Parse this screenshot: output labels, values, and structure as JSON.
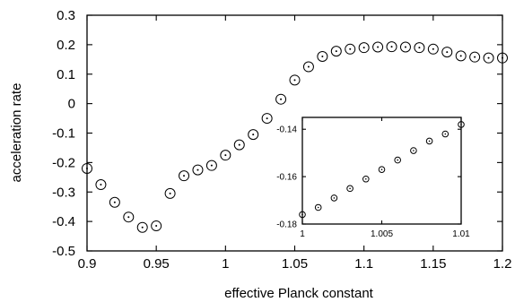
{
  "chart_data": [
    {
      "type": "scatter",
      "xlabel": "effective Planck constant",
      "ylabel": "acceleration rate",
      "xlim": [
        0.9,
        1.2
      ],
      "ylim": [
        -0.5,
        0.3
      ],
      "xticks": [
        "0.9",
        "0.95",
        "1",
        "1.05",
        "1.1",
        "1.15",
        "1.2"
      ],
      "yticks": [
        "-0.5",
        "-0.4",
        "-0.3",
        "-0.2",
        "-0.1",
        "0",
        "0.1",
        "0.2",
        "0.3"
      ],
      "xtick_values": [
        0.9,
        0.95,
        1.0,
        1.05,
        1.1,
        1.15,
        1.2
      ],
      "ytick_values": [
        -0.5,
        -0.4,
        -0.3,
        -0.2,
        -0.1,
        0,
        0.1,
        0.2,
        0.3
      ],
      "marker": "circle-with-dot",
      "points": [
        {
          "x": 0.9,
          "y": -0.22
        },
        {
          "x": 0.91,
          "y": -0.275
        },
        {
          "x": 0.92,
          "y": -0.335
        },
        {
          "x": 0.93,
          "y": -0.385
        },
        {
          "x": 0.94,
          "y": -0.42
        },
        {
          "x": 0.95,
          "y": -0.415
        },
        {
          "x": 0.96,
          "y": -0.305
        },
        {
          "x": 0.97,
          "y": -0.245
        },
        {
          "x": 0.98,
          "y": -0.225
        },
        {
          "x": 0.99,
          "y": -0.21
        },
        {
          "x": 1.0,
          "y": -0.175
        },
        {
          "x": 1.01,
          "y": -0.14
        },
        {
          "x": 1.02,
          "y": -0.105
        },
        {
          "x": 1.03,
          "y": -0.05
        },
        {
          "x": 1.04,
          "y": 0.015
        },
        {
          "x": 1.05,
          "y": 0.08
        },
        {
          "x": 1.06,
          "y": 0.125
        },
        {
          "x": 1.07,
          "y": 0.16
        },
        {
          "x": 1.08,
          "y": 0.178
        },
        {
          "x": 1.09,
          "y": 0.185
        },
        {
          "x": 1.1,
          "y": 0.19
        },
        {
          "x": 1.11,
          "y": 0.192
        },
        {
          "x": 1.12,
          "y": 0.193
        },
        {
          "x": 1.13,
          "y": 0.192
        },
        {
          "x": 1.14,
          "y": 0.19
        },
        {
          "x": 1.15,
          "y": 0.185
        },
        {
          "x": 1.16,
          "y": 0.175
        },
        {
          "x": 1.17,
          "y": 0.162
        },
        {
          "x": 1.18,
          "y": 0.158
        },
        {
          "x": 1.19,
          "y": 0.155
        },
        {
          "x": 1.2,
          "y": 0.155
        }
      ]
    },
    {
      "type": "scatter",
      "xlabel": "",
      "ylabel": "",
      "xlim": [
        1.0,
        1.01
      ],
      "ylim": [
        -0.18,
        -0.135
      ],
      "xticks": [
        "1",
        "1.005",
        "1.01"
      ],
      "yticks": [
        "-0.18",
        "-0.16",
        "-0.14"
      ],
      "xtick_values": [
        1.0,
        1.005,
        1.01
      ],
      "ytick_values": [
        -0.18,
        -0.16,
        -0.14
      ],
      "marker": "circle-with-dot",
      "points": [
        {
          "x": 1.0,
          "y": -0.176
        },
        {
          "x": 1.001,
          "y": -0.173
        },
        {
          "x": 1.002,
          "y": -0.169
        },
        {
          "x": 1.003,
          "y": -0.165
        },
        {
          "x": 1.004,
          "y": -0.161
        },
        {
          "x": 1.005,
          "y": -0.157
        },
        {
          "x": 1.006,
          "y": -0.153
        },
        {
          "x": 1.007,
          "y": -0.149
        },
        {
          "x": 1.008,
          "y": -0.145
        },
        {
          "x": 1.009,
          "y": -0.142
        },
        {
          "x": 1.01,
          "y": -0.138
        }
      ]
    }
  ]
}
